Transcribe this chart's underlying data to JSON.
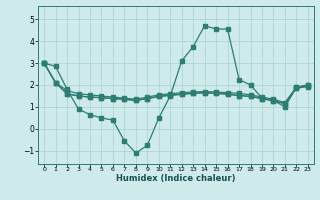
{
  "xlabel": "Humidex (Indice chaleur)",
  "background_color": "#ceeaea",
  "line_color": "#2e7d72",
  "grid_color": "#afd4d4",
  "xlim": [
    -0.5,
    23.5
  ],
  "ylim": [
    -1.6,
    5.6
  ],
  "xticks": [
    0,
    1,
    2,
    3,
    4,
    5,
    6,
    7,
    8,
    9,
    10,
    11,
    12,
    13,
    14,
    15,
    16,
    17,
    18,
    19,
    20,
    21,
    22,
    23
  ],
  "yticks": [
    -1,
    0,
    1,
    2,
    3,
    4,
    5
  ],
  "lines": [
    [
      3.0,
      2.85,
      1.8,
      0.9,
      0.65,
      0.5,
      0.4,
      -0.55,
      -1.1,
      -0.75,
      0.5,
      1.5,
      3.1,
      3.75,
      4.7,
      4.55,
      4.55,
      2.25,
      2.0,
      1.4,
      1.3,
      1.0,
      1.9,
      2.0
    ],
    [
      3.0,
      2.1,
      1.75,
      1.6,
      1.55,
      1.5,
      1.45,
      1.4,
      1.35,
      1.45,
      1.55,
      1.6,
      1.65,
      1.68,
      1.7,
      1.68,
      1.65,
      1.62,
      1.55,
      1.45,
      1.35,
      1.2,
      1.9,
      2.0
    ],
    [
      3.0,
      2.1,
      1.6,
      1.5,
      1.45,
      1.42,
      1.38,
      1.35,
      1.3,
      1.38,
      1.48,
      1.53,
      1.58,
      1.62,
      1.65,
      1.62,
      1.58,
      1.52,
      1.48,
      1.38,
      1.28,
      1.15,
      1.88,
      1.95
    ],
    [
      3.0,
      2.1,
      1.6,
      1.5,
      1.45,
      1.42,
      1.38,
      1.35,
      1.3,
      1.38,
      1.48,
      1.53,
      1.58,
      1.62,
      1.65,
      1.62,
      1.58,
      1.52,
      1.48,
      1.38,
      1.28,
      1.15,
      1.85,
      1.93
    ]
  ]
}
